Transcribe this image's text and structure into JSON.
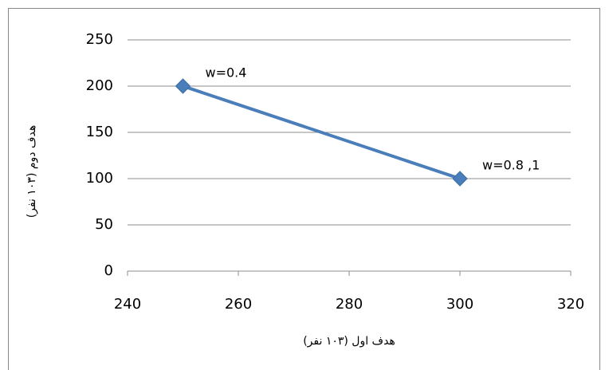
{
  "chart_data": {
    "type": "line",
    "x_label": "هدف اول  (۱۰۳ نفر)",
    "y_label": "هدف دوم (۱۰۳ نفر)",
    "x": [
      250,
      300
    ],
    "values": [
      200,
      100
    ],
    "color": "#4a7ebb",
    "annotations": [
      "w=0.4",
      "w=0.8 ,1"
    ],
    "xlim": [
      240,
      320
    ],
    "xticks": [
      240,
      260,
      280,
      300,
      320
    ],
    "ylim": [
      0,
      250
    ],
    "yticks": [
      0,
      50,
      100,
      150,
      200,
      250
    ],
    "grid": true
  }
}
